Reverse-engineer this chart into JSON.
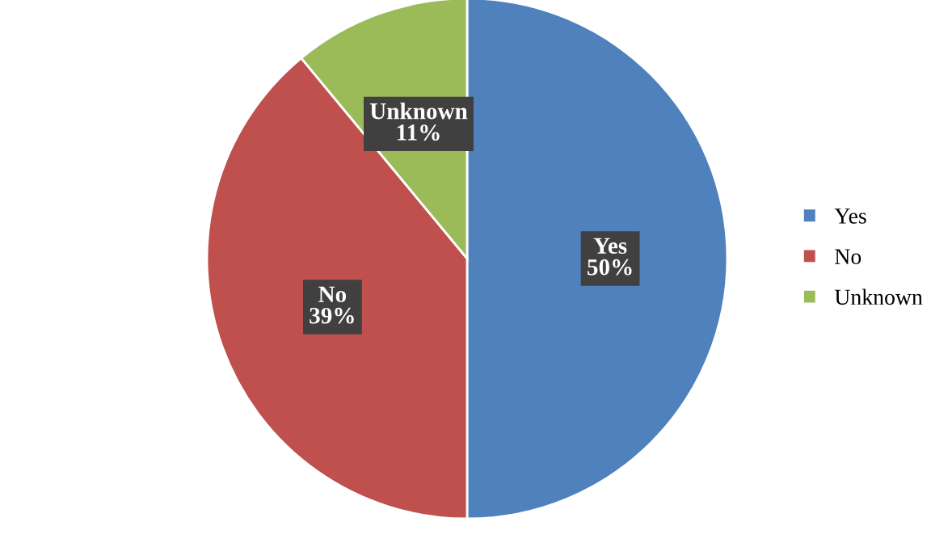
{
  "chart_data": {
    "type": "pie",
    "categories": [
      "Yes",
      "No",
      "Unknown"
    ],
    "values": [
      50,
      39,
      11
    ],
    "colors": [
      "#4f81bd",
      "#c0504d",
      "#9bbb59"
    ],
    "value_labels": [
      "Yes\n50%",
      "No\n39%",
      "Unknown\n11%"
    ],
    "legend": "right"
  }
}
